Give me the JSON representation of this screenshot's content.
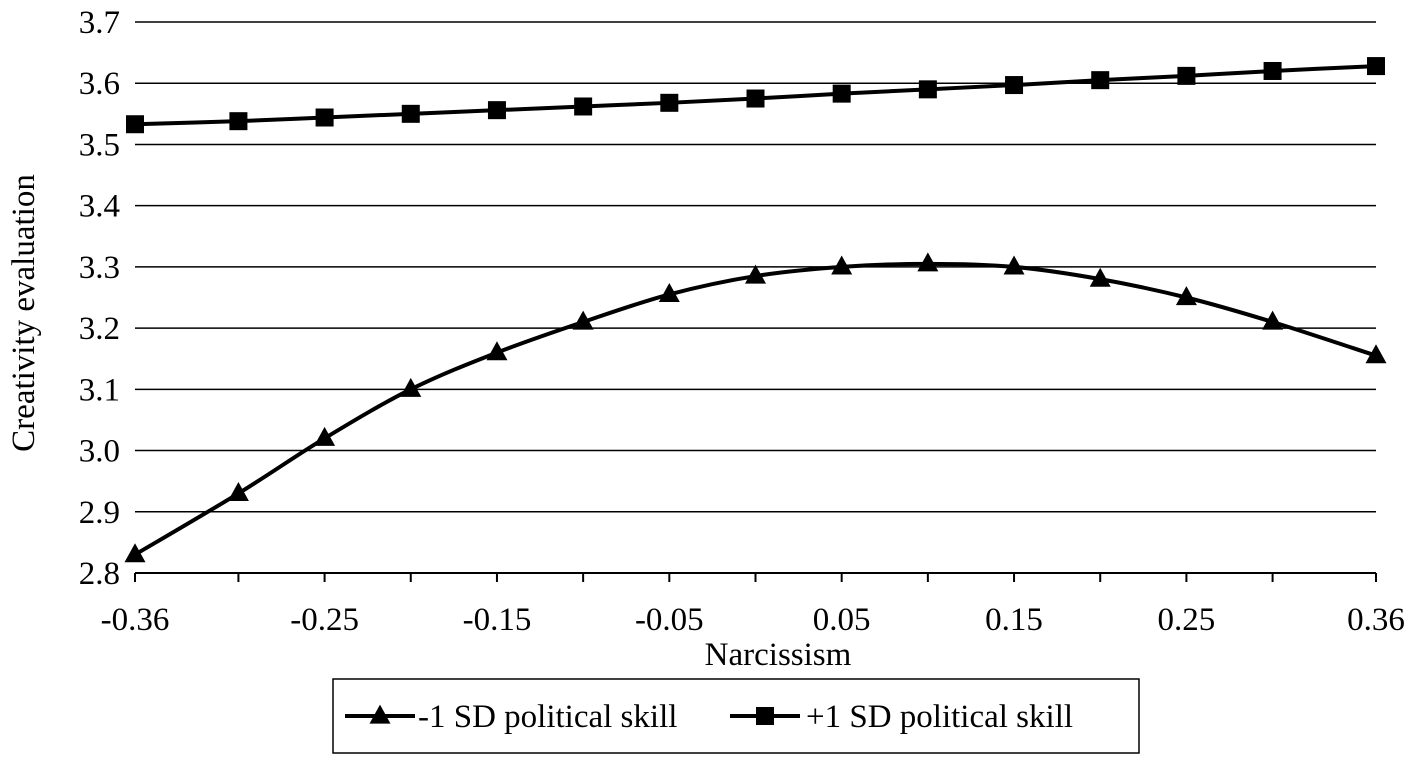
{
  "chart_data": {
    "type": "line",
    "title": "",
    "xlabel": "Narcissism",
    "ylabel": "Creativity evaluation",
    "x_tick_labels": [
      "-0.36",
      "-0.25",
      "-0.15",
      "-0.05",
      "0.05",
      "0.15",
      "0.25",
      "0.36"
    ],
    "y_tick_labels": [
      "2.8",
      "2.9",
      "3.0",
      "3.1",
      "3.2",
      "3.3",
      "3.4",
      "3.5",
      "3.6",
      "3.7"
    ],
    "x": [
      -0.36,
      -0.3,
      -0.25,
      -0.2,
      -0.15,
      -0.1,
      -0.05,
      0.0,
      0.05,
      0.1,
      0.15,
      0.2,
      0.25,
      0.3,
      0.36
    ],
    "xlim": [
      -0.36,
      0.36
    ],
    "ylim": [
      2.8,
      3.7
    ],
    "grid": true,
    "legend_position": "bottom",
    "series": [
      {
        "name": "-1 SD political skill",
        "marker": "triangle",
        "color": "#000000",
        "values": [
          2.83,
          2.93,
          3.02,
          3.1,
          3.16,
          3.21,
          3.255,
          3.285,
          3.3,
          3.305,
          3.3,
          3.28,
          3.25,
          3.21,
          3.155
        ]
      },
      {
        "name": "+1 SD political skill",
        "marker": "square",
        "color": "#000000",
        "values": [
          3.533,
          3.538,
          3.544,
          3.55,
          3.556,
          3.562,
          3.568,
          3.575,
          3.583,
          3.59,
          3.597,
          3.605,
          3.612,
          3.62,
          3.628
        ]
      }
    ]
  }
}
